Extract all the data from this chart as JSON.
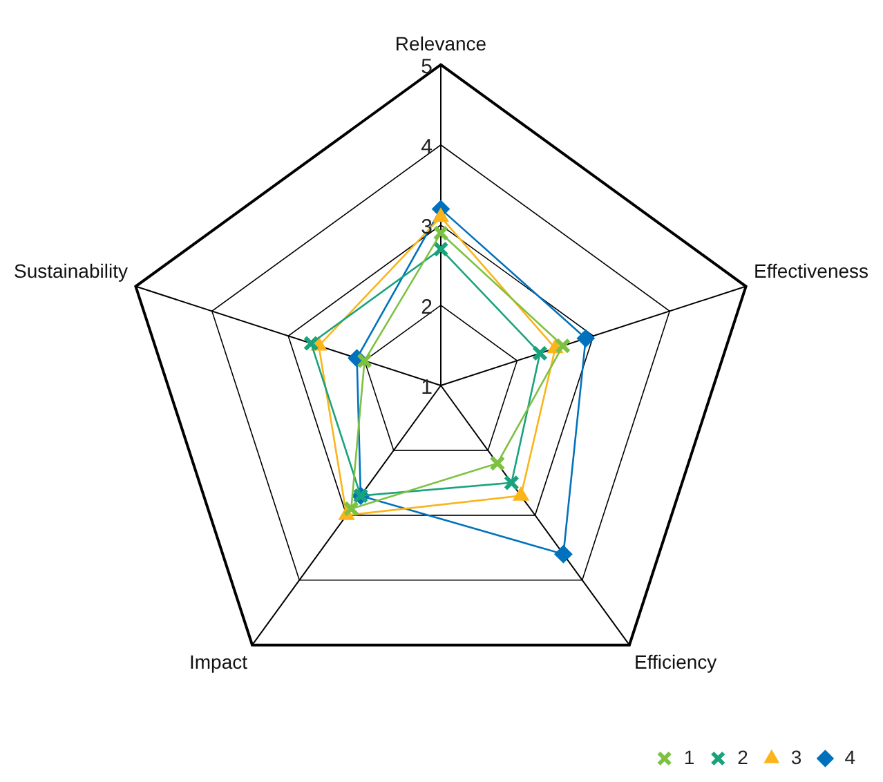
{
  "chart_data": {
    "type": "radar",
    "categories": [
      "Relevance",
      "Effectiveness",
      "Efficiency",
      "Impact",
      "Sustainability"
    ],
    "ylim": [
      1,
      5
    ],
    "yticks": [
      1,
      2,
      3,
      4,
      5
    ],
    "grid": true,
    "legend": "bottom right",
    "series": [
      {
        "name": "1",
        "color": "#7dc142",
        "marker": "cross",
        "values": [
          2.9,
          2.6,
          2.2,
          2.9,
          2.0
        ]
      },
      {
        "name": "2",
        "color": "#18a37c",
        "marker": "cross",
        "values": [
          2.7,
          2.3,
          2.5,
          2.7,
          2.7
        ]
      },
      {
        "name": "3",
        "color": "#fbb41a",
        "marker": "triangle",
        "values": [
          3.1,
          2.5,
          2.7,
          3.0,
          2.6
        ]
      },
      {
        "name": "4",
        "color": "#0072bd",
        "marker": "diamond",
        "values": [
          3.2,
          2.9,
          3.6,
          2.7,
          2.1
        ]
      }
    ]
  }
}
